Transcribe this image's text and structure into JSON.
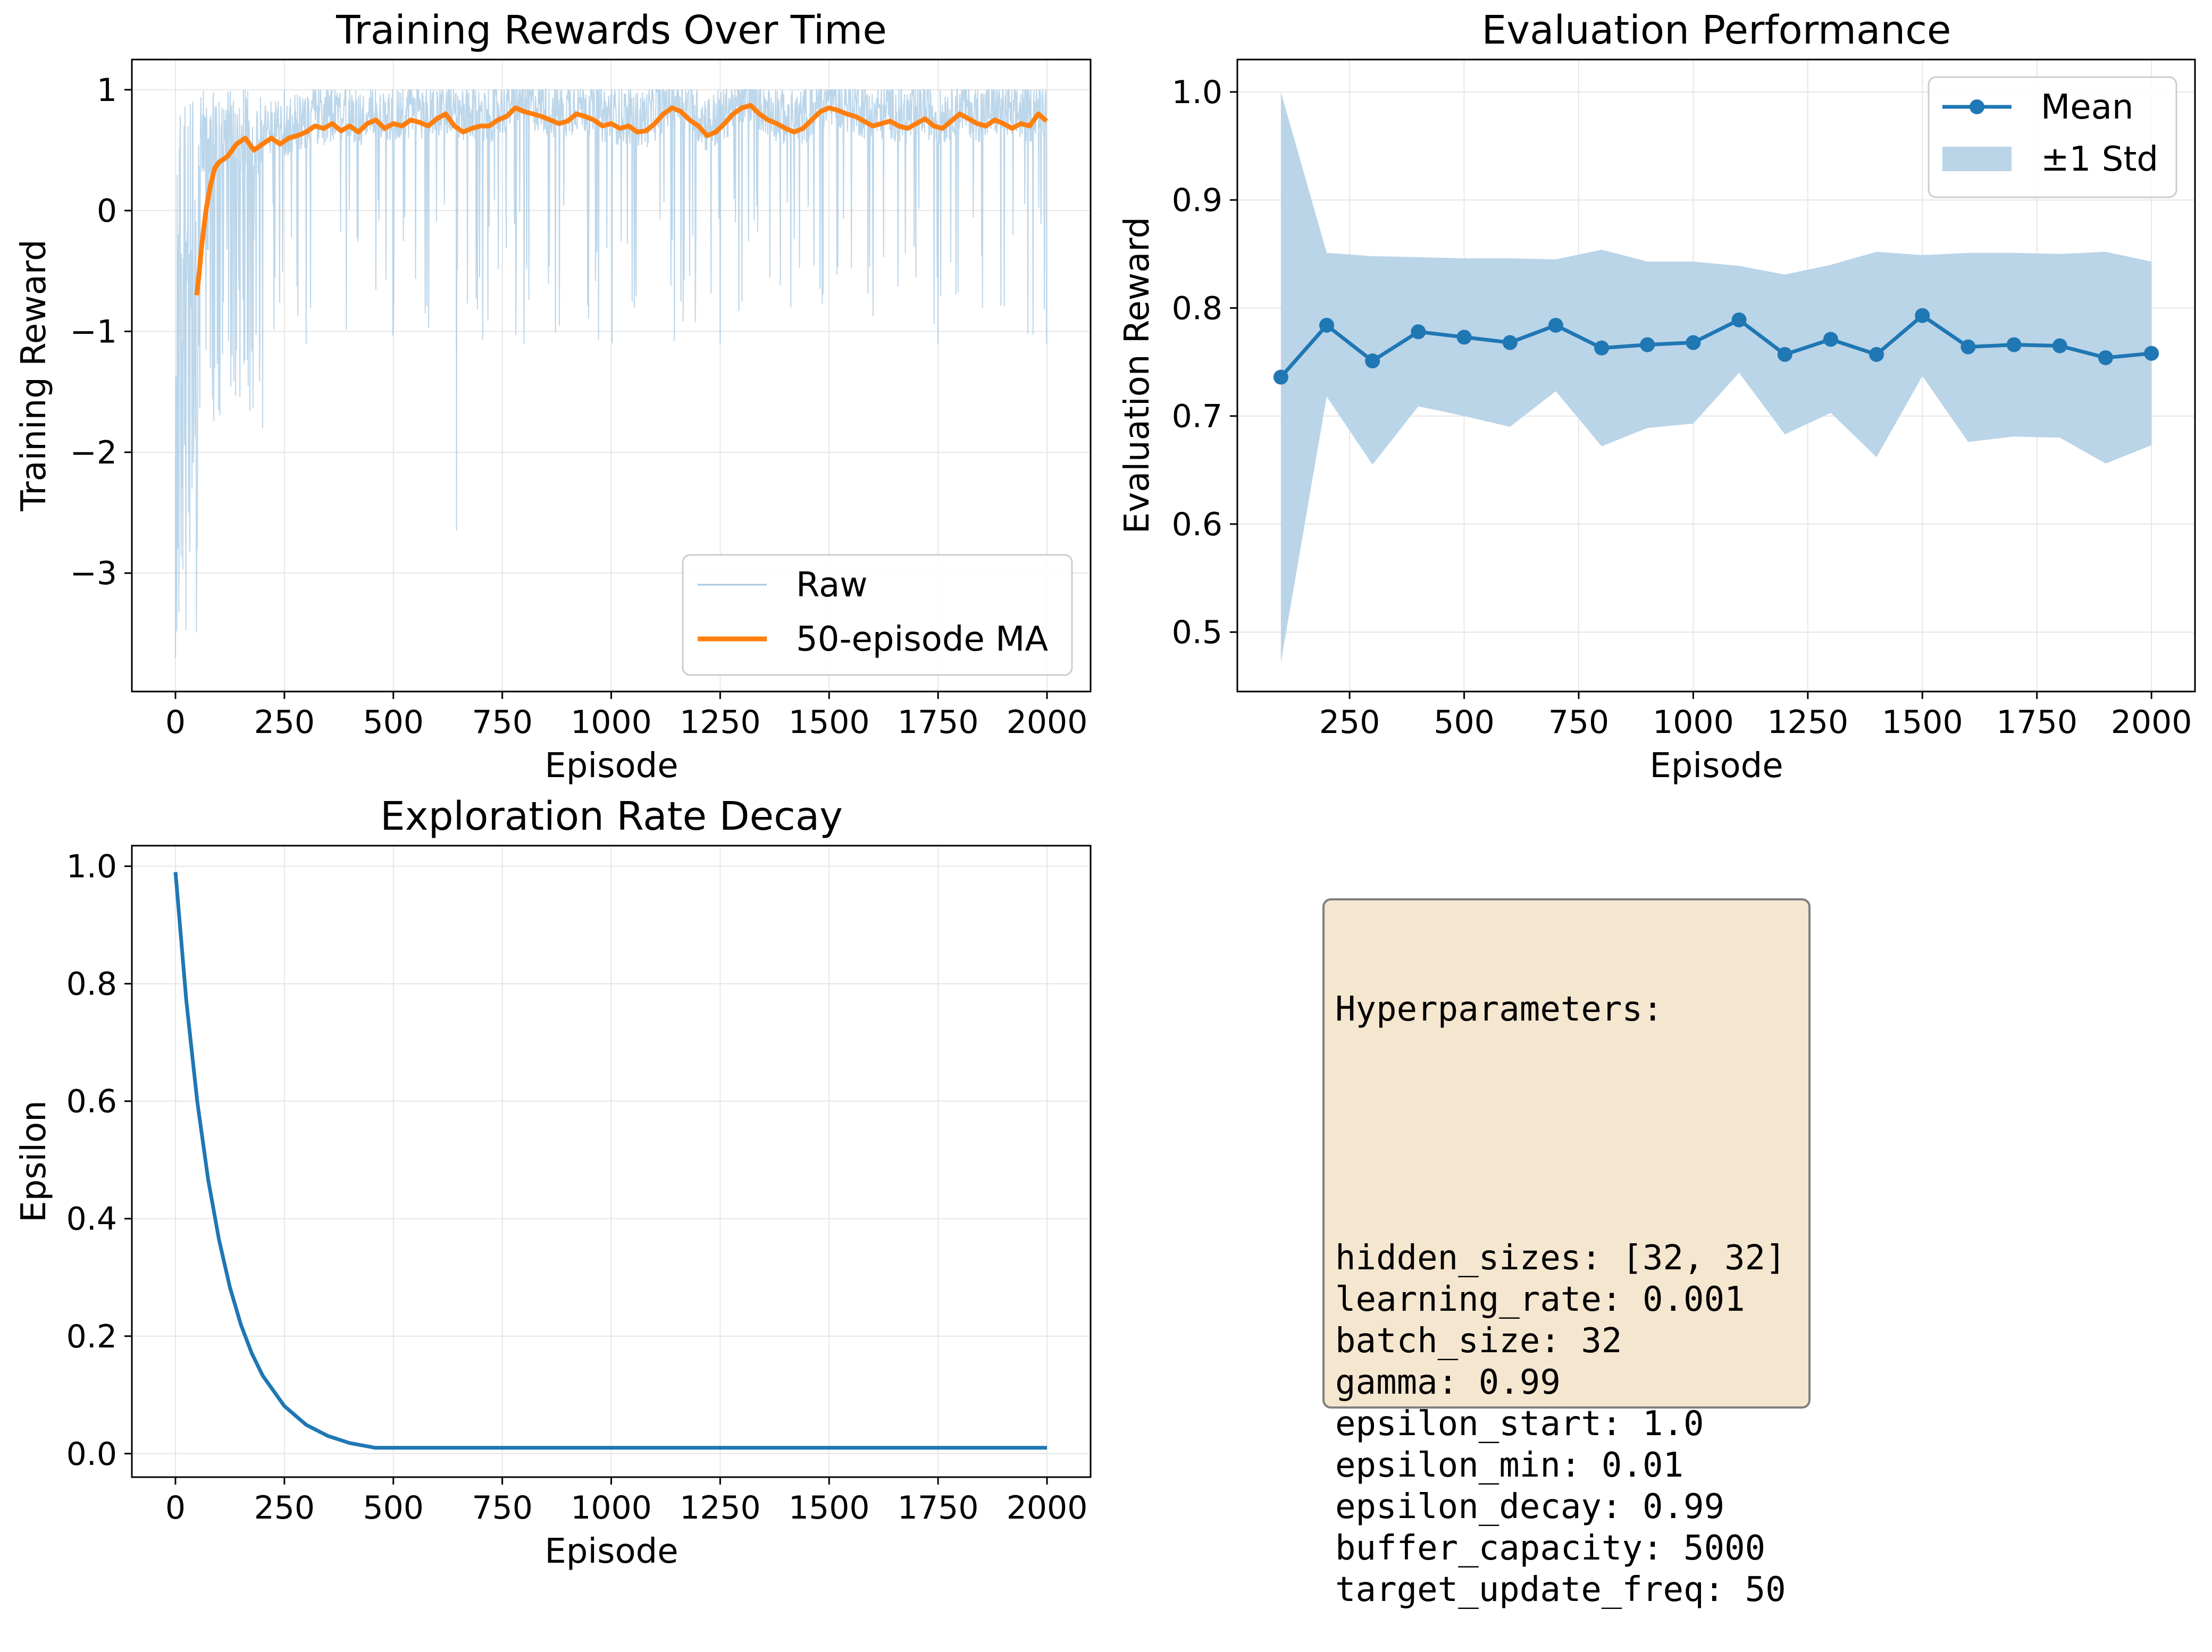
{
  "colors": {
    "blue": "#1f77b4",
    "orange": "#ff7f0e",
    "raw": "#a6c8e3",
    "band": "#bad4e8",
    "grid": "#e6e6e6",
    "box_bg": "#f5e6cf"
  },
  "chart_data": [
    {
      "type": "line",
      "title": "Training Rewards Over Time",
      "xlabel": "Episode",
      "ylabel": "Training Reward",
      "xlim": [
        -100,
        2100
      ],
      "ylim": [
        -3.98,
        1.25
      ],
      "xticks": [
        0,
        250,
        500,
        750,
        1000,
        1250,
        1500,
        1750,
        2000
      ],
      "xtick_labels": [
        "0",
        "250",
        "500",
        "750",
        "1000",
        "1250",
        "1500",
        "1750",
        "2000"
      ],
      "yticks": [
        -3,
        -2,
        -1,
        0,
        1
      ],
      "ytick_labels": [
        "−3",
        "−2",
        "−1",
        "0",
        "1"
      ],
      "grid": true,
      "legend": {
        "placement": "lower-right",
        "entries": [
          "Raw",
          "50-episode MA"
        ]
      },
      "series": [
        {
          "name": "Raw",
          "style": "thin translucent line, one value per episode, mostly between about 0.6 and 1.0 with frequent downward spikes to about -1.1; early episodes range down to about -3.7",
          "x": [
            0,
            5,
            10,
            15,
            20,
            30,
            40,
            50,
            60,
            80,
            100,
            130,
            160,
            200,
            250,
            300,
            400,
            500,
            640,
            645,
            650,
            800,
            1000,
            1250,
            1500,
            1750,
            1999
          ],
          "values": [
            -3.7,
            -2.8,
            0.4,
            -2.3,
            0.7,
            -2.5,
            0.9,
            -2.8,
            0.6,
            -1.3,
            0.9,
            -1.2,
            1.0,
            -1.8,
            1.0,
            -1.1,
            1.0,
            -1.0,
            0.8,
            -2.65,
            0.9,
            -1.1,
            0.95,
            -1.1,
            1.0,
            -1.1,
            -1.1
          ]
        },
        {
          "name": "50-episode MA",
          "x": [
            49,
            55,
            60,
            70,
            80,
            90,
            100,
            120,
            140,
            160,
            180,
            200,
            220,
            240,
            260,
            280,
            300,
            320,
            340,
            360,
            380,
            400,
            420,
            440,
            460,
            480,
            500,
            520,
            540,
            560,
            580,
            600,
            620,
            640,
            660,
            680,
            700,
            720,
            740,
            760,
            780,
            800,
            820,
            840,
            860,
            880,
            900,
            920,
            940,
            960,
            980,
            1000,
            1020,
            1040,
            1060,
            1080,
            1100,
            1120,
            1140,
            1160,
            1180,
            1200,
            1220,
            1240,
            1260,
            1280,
            1300,
            1320,
            1340,
            1360,
            1380,
            1400,
            1420,
            1440,
            1460,
            1480,
            1500,
            1520,
            1540,
            1560,
            1580,
            1600,
            1620,
            1640,
            1660,
            1680,
            1700,
            1720,
            1740,
            1760,
            1780,
            1800,
            1820,
            1840,
            1860,
            1880,
            1900,
            1920,
            1940,
            1960,
            1980,
            1999
          ],
          "values": [
            -0.7,
            -0.5,
            -0.3,
            0.0,
            0.2,
            0.35,
            0.4,
            0.45,
            0.55,
            0.6,
            0.5,
            0.55,
            0.6,
            0.55,
            0.6,
            0.62,
            0.65,
            0.7,
            0.68,
            0.72,
            0.66,
            0.7,
            0.65,
            0.72,
            0.75,
            0.68,
            0.72,
            0.7,
            0.75,
            0.73,
            0.7,
            0.76,
            0.8,
            0.7,
            0.65,
            0.68,
            0.7,
            0.7,
            0.75,
            0.78,
            0.85,
            0.82,
            0.8,
            0.78,
            0.75,
            0.72,
            0.74,
            0.8,
            0.78,
            0.75,
            0.7,
            0.72,
            0.68,
            0.7,
            0.65,
            0.66,
            0.72,
            0.8,
            0.85,
            0.82,
            0.75,
            0.7,
            0.62,
            0.65,
            0.72,
            0.8,
            0.85,
            0.87,
            0.8,
            0.75,
            0.72,
            0.68,
            0.65,
            0.68,
            0.75,
            0.82,
            0.85,
            0.83,
            0.8,
            0.78,
            0.74,
            0.7,
            0.72,
            0.74,
            0.7,
            0.68,
            0.72,
            0.76,
            0.7,
            0.68,
            0.74,
            0.8,
            0.76,
            0.72,
            0.7,
            0.75,
            0.72,
            0.68,
            0.72,
            0.7,
            0.8,
            0.74
          ]
        }
      ]
    },
    {
      "type": "line",
      "title": "Evaluation Performance",
      "xlabel": "Episode",
      "ylabel": "Evaluation Reward",
      "xlim": [
        5,
        2095
      ],
      "ylim": [
        0.445,
        1.03
      ],
      "xticks": [
        250,
        500,
        750,
        1000,
        1250,
        1500,
        1750,
        2000
      ],
      "xtick_labels": [
        "250",
        "500",
        "750",
        "1000",
        "1250",
        "1500",
        "1750",
        "2000"
      ],
      "yticks": [
        0.5,
        0.6,
        0.7,
        0.8,
        0.9,
        1.0
      ],
      "ytick_labels": [
        "0.5",
        "0.6",
        "0.7",
        "0.8",
        "0.9",
        "1.0"
      ],
      "grid": true,
      "legend": {
        "placement": "top-right",
        "entries": [
          "Mean",
          "±1 Std"
        ]
      },
      "x": [
        100,
        200,
        300,
        400,
        500,
        600,
        700,
        800,
        900,
        1000,
        1100,
        1200,
        1300,
        1400,
        1500,
        1600,
        1700,
        1800,
        1900,
        2000
      ],
      "series": [
        {
          "name": "Mean",
          "values": [
            0.736,
            0.784,
            0.751,
            0.778,
            0.773,
            0.768,
            0.784,
            0.763,
            0.766,
            0.768,
            0.789,
            0.757,
            0.771,
            0.757,
            0.793,
            0.764,
            0.766,
            0.765,
            0.754,
            0.758
          ]
        },
        {
          "name": "±1 Std",
          "upper": [
            1.0,
            0.851,
            0.848,
            0.847,
            0.846,
            0.846,
            0.845,
            0.854,
            0.843,
            0.843,
            0.839,
            0.831,
            0.84,
            0.852,
            0.849,
            0.851,
            0.851,
            0.85,
            0.852,
            0.843
          ],
          "lower": [
            0.472,
            0.718,
            0.655,
            0.709,
            0.7,
            0.69,
            0.723,
            0.672,
            0.689,
            0.693,
            0.74,
            0.683,
            0.703,
            0.662,
            0.737,
            0.676,
            0.681,
            0.68,
            0.656,
            0.673
          ]
        }
      ]
    },
    {
      "type": "line",
      "title": "Exploration Rate Decay",
      "xlabel": "Episode",
      "ylabel": "Epsilon",
      "xlim": [
        -100,
        2100
      ],
      "ylim": [
        -0.04,
        1.035
      ],
      "xticks": [
        0,
        250,
        500,
        750,
        1000,
        1250,
        1500,
        1750,
        2000
      ],
      "xtick_labels": [
        "0",
        "250",
        "500",
        "750",
        "1000",
        "1250",
        "1500",
        "1750",
        "2000"
      ],
      "yticks": [
        0.0,
        0.2,
        0.4,
        0.6,
        0.8,
        1.0
      ],
      "ytick_labels": [
        "0.0",
        "0.2",
        "0.4",
        "0.6",
        "0.8",
        "1.0"
      ],
      "grid": true,
      "series": [
        {
          "name": "",
          "x": [
            0,
            25,
            50,
            75,
            100,
            125,
            150,
            175,
            200,
            250,
            300,
            350,
            400,
            458,
            500,
            750,
            1000,
            1250,
            1500,
            1750,
            2000
          ],
          "values": [
            0.99,
            0.771,
            0.6,
            0.467,
            0.364,
            0.283,
            0.22,
            0.171,
            0.133,
            0.081,
            0.049,
            0.03,
            0.018,
            0.01,
            0.01,
            0.01,
            0.01,
            0.01,
            0.01,
            0.01,
            0.01
          ]
        }
      ]
    }
  ],
  "hyperparameters": {
    "heading": "Hyperparameters:",
    "lines": [
      "hidden_sizes: [32, 32]",
      "learning_rate: 0.001",
      "batch_size: 32",
      "gamma: 0.99",
      "epsilon_start: 1.0",
      "epsilon_min: 0.01",
      "epsilon_decay: 0.99",
      "buffer_capacity: 5000",
      "target_update_freq: 50"
    ]
  }
}
